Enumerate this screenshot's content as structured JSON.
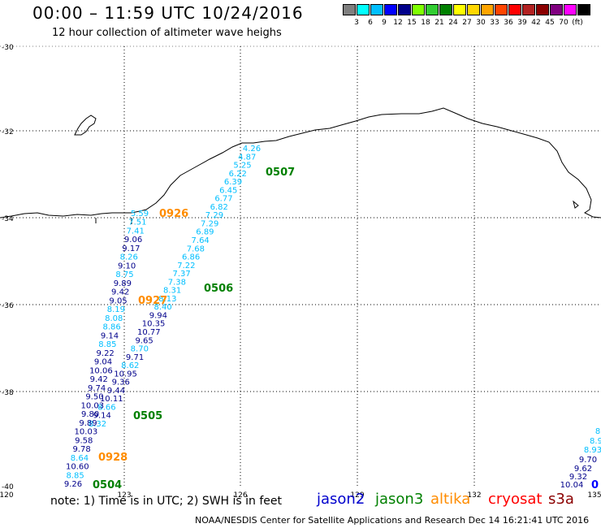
{
  "header": {
    "title": "00:00 – 11:59 UTC 10/24/2016",
    "subtitle": "12 hour collection of altimeter wave heighs"
  },
  "scale": {
    "unit": "(ft)",
    "colors": [
      "#7f7f7f",
      "#00ffff",
      "#00bfff",
      "#0000ff",
      "#00008b",
      "#7fff00",
      "#32cd32",
      "#008000",
      "#ffff00",
      "#ffd700",
      "#ffa500",
      "#ff4500",
      "#ff0000",
      "#b22222",
      "#8b0000",
      "#800080",
      "#ff00ff",
      "#000000"
    ],
    "labels": [
      "3",
      "6",
      "9",
      "12",
      "15",
      "18",
      "21",
      "24",
      "27",
      "30",
      "33",
      "36",
      "39",
      "42",
      "45",
      "70"
    ]
  },
  "axes": {
    "lat_labels": [
      "-30",
      "-32",
      "-34",
      "-36",
      "-38",
      "-40"
    ],
    "lon_labels": [
      "120",
      "123",
      "126",
      "129",
      "132",
      "135"
    ]
  },
  "passes": [
    {
      "id": "0507",
      "color": "#008000"
    },
    {
      "id": "0926",
      "color": "#ff8c00"
    },
    {
      "id": "0506",
      "color": "#008000"
    },
    {
      "id": "0927",
      "color": "#ff8c00"
    },
    {
      "id": "0505",
      "color": "#008000"
    },
    {
      "id": "0928",
      "color": "#ff8c00"
    },
    {
      "id": "0504",
      "color": "#008000"
    }
  ],
  "track_values": {
    "right_track": [
      {
        "v": "4.26",
        "c": "#00bfff"
      },
      {
        "v": "4.87",
        "c": "#00bfff"
      },
      {
        "v": "5.25",
        "c": "#00bfff"
      },
      {
        "v": "6.22",
        "c": "#00bfff"
      },
      {
        "v": "6.39",
        "c": "#00bfff"
      },
      {
        "v": "6.45",
        "c": "#00bfff"
      },
      {
        "v": "6.77",
        "c": "#00bfff"
      },
      {
        "v": "6.82",
        "c": "#00bfff"
      },
      {
        "v": "7.29",
        "c": "#00bfff"
      },
      {
        "v": "7.29",
        "c": "#00bfff"
      },
      {
        "v": "6.89",
        "c": "#00bfff"
      },
      {
        "v": "7.64",
        "c": "#00bfff"
      },
      {
        "v": "7.68",
        "c": "#00bfff"
      },
      {
        "v": "6.86",
        "c": "#00bfff"
      },
      {
        "v": "7.22",
        "c": "#00bfff"
      },
      {
        "v": "7.37",
        "c": "#00bfff"
      },
      {
        "v": "7.38",
        "c": "#00bfff"
      },
      {
        "v": "8.31",
        "c": "#00bfff"
      },
      {
        "v": "8.13",
        "c": "#00bfff"
      },
      {
        "v": "8.40",
        "c": "#00bfff"
      },
      {
        "v": "9.94",
        "c": "#00008b"
      },
      {
        "v": "10.35",
        "c": "#00008b"
      },
      {
        "v": "10.77",
        "c": "#00008b"
      },
      {
        "v": "9.65",
        "c": "#00008b"
      },
      {
        "v": "8.70",
        "c": "#00bfff"
      },
      {
        "v": "9.71",
        "c": "#00008b"
      },
      {
        "v": "8.62",
        "c": "#00bfff"
      },
      {
        "v": "10.95",
        "c": "#00008b"
      },
      {
        "v": "9.36",
        "c": "#00008b"
      },
      {
        "v": "9.44",
        "c": "#00008b"
      },
      {
        "v": "10.11",
        "c": "#00008b"
      },
      {
        "v": "8.66",
        "c": "#00bfff"
      },
      {
        "v": "9.14",
        "c": "#00008b"
      },
      {
        "v": "8.32",
        "c": "#00bfff"
      }
    ],
    "left_track": [
      {
        "v": "5.59",
        "c": "#00bfff"
      },
      {
        "v": "7.51",
        "c": "#00bfff"
      },
      {
        "v": "7.41",
        "c": "#00bfff"
      },
      {
        "v": "9.06",
        "c": "#00008b"
      },
      {
        "v": "9.17",
        "c": "#00008b"
      },
      {
        "v": "8.26",
        "c": "#00bfff"
      },
      {
        "v": "9.10",
        "c": "#00008b"
      },
      {
        "v": "8.75",
        "c": "#00bfff"
      },
      {
        "v": "9.89",
        "c": "#00008b"
      },
      {
        "v": "9.42",
        "c": "#00008b"
      },
      {
        "v": "9.05",
        "c": "#00008b"
      },
      {
        "v": "8.19",
        "c": "#00bfff"
      },
      {
        "v": "8.08",
        "c": "#00bfff"
      },
      {
        "v": "8.86",
        "c": "#00bfff"
      },
      {
        "v": "9.14",
        "c": "#00008b"
      },
      {
        "v": "8.85",
        "c": "#00bfff"
      },
      {
        "v": "9.22",
        "c": "#00008b"
      },
      {
        "v": "9.04",
        "c": "#00008b"
      },
      {
        "v": "10.06",
        "c": "#00008b"
      },
      {
        "v": "9.42",
        "c": "#00008b"
      },
      {
        "v": "9.74",
        "c": "#00008b"
      },
      {
        "v": "9.50",
        "c": "#00008b"
      },
      {
        "v": "10.03",
        "c": "#00008b"
      },
      {
        "v": "9.80",
        "c": "#00008b"
      },
      {
        "v": "9.89",
        "c": "#00008b"
      },
      {
        "v": "10.03",
        "c": "#00008b"
      },
      {
        "v": "9.58",
        "c": "#00008b"
      },
      {
        "v": "9.78",
        "c": "#00008b"
      },
      {
        "v": "8.64",
        "c": "#00bfff"
      },
      {
        "v": "10.60",
        "c": "#00008b"
      },
      {
        "v": "8.85",
        "c": "#00bfff"
      },
      {
        "v": "9.26",
        "c": "#00008b"
      }
    ],
    "edge_track": [
      {
        "v": "8",
        "c": "#00bfff"
      },
      {
        "v": "8.9",
        "c": "#00bfff"
      },
      {
        "v": "8.93",
        "c": "#00bfff"
      },
      {
        "v": "9.70",
        "c": "#00008b"
      },
      {
        "v": "9.62",
        "c": "#00008b"
      },
      {
        "v": "9.32",
        "c": "#00008b"
      },
      {
        "v": "10.04",
        "c": "#00008b"
      }
    ],
    "edge_pass": {
      "id": "0",
      "color": "#0000ff"
    }
  },
  "legend": {
    "note": "note:  1) Time is in UTC; 2) SWH is in feet",
    "satellites": [
      {
        "name": "jason2",
        "color": "#0000cd"
      },
      {
        "name": "jason3",
        "color": "#008000"
      },
      {
        "name": "altika",
        "color": "#ff8c00"
      },
      {
        "name": "cryosat",
        "color": "#ff0000"
      },
      {
        "name": "s3a",
        "color": "#8b0000"
      }
    ]
  },
  "footer": "NOAA/NESDIS Center for Satellite Applications and Research      Dec 14 16:21:41 UTC 2016"
}
